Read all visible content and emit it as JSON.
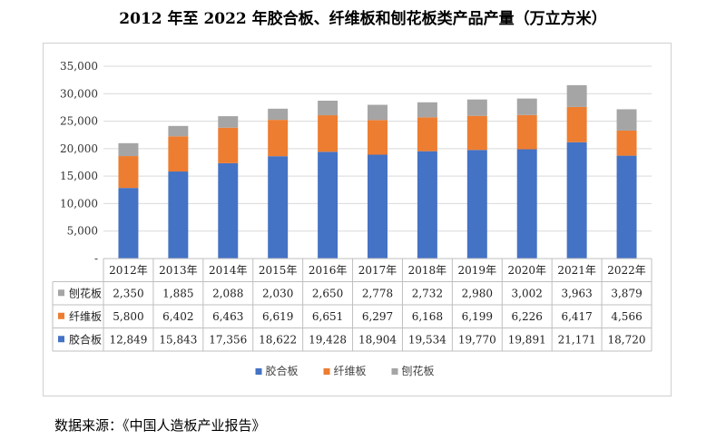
{
  "title": "2012 年至 2022 年胶合板、纤维板和刨花板类产品产量（万立方米）",
  "source": "数据来源：《中国人造板产业报告》",
  "chart_data": {
    "type": "bar",
    "stacked": true,
    "categories": [
      "2012年",
      "2013年",
      "2014年",
      "2015年",
      "2016年",
      "2017年",
      "2018年",
      "2019年",
      "2020年",
      "2021年",
      "2022年"
    ],
    "ylim": [
      0,
      35000
    ],
    "yticks": [
      0,
      5000,
      10000,
      15000,
      20000,
      25000,
      30000,
      35000
    ],
    "ytick_labels": [
      "-",
      "5,000",
      "10,000",
      "15,000",
      "20,000",
      "25,000",
      "30,000",
      "35,000"
    ],
    "grid": true,
    "legend_position": "bottom",
    "series": [
      {
        "name": "胶合板",
        "color": "#4472C4",
        "values": [
          12849,
          15843,
          17356,
          18622,
          19428,
          18904,
          19534,
          19770,
          19891,
          21171,
          18720
        ],
        "labels": [
          "12,849",
          "15,843",
          "17,356",
          "18,622",
          "19,428",
          "18,904",
          "19,534",
          "19,770",
          "19,891",
          "21,171",
          "18,720"
        ]
      },
      {
        "name": "纤维板",
        "color": "#ED7D31",
        "values": [
          5800,
          6402,
          6463,
          6619,
          6651,
          6297,
          6168,
          6199,
          6226,
          6417,
          4566
        ],
        "labels": [
          "5,800",
          "6,402",
          "6,463",
          "6,619",
          "6,651",
          "6,297",
          "6,168",
          "6,199",
          "6,226",
          "6,417",
          "4,566"
        ]
      },
      {
        "name": "刨花板",
        "color": "#A5A5A5",
        "values": [
          2350,
          1885,
          2088,
          2030,
          2650,
          2778,
          2732,
          2980,
          3002,
          3963,
          3879
        ],
        "labels": [
          "2,350",
          "1,885",
          "2,088",
          "2,030",
          "2,650",
          "2,778",
          "2,732",
          "2,980",
          "3,002",
          "3,963",
          "3,879"
        ]
      }
    ],
    "table_row_order": [
      "刨花板",
      "纤维板",
      "胶合板"
    ],
    "legend_order": [
      "胶合板",
      "纤维板",
      "刨花板"
    ]
  }
}
